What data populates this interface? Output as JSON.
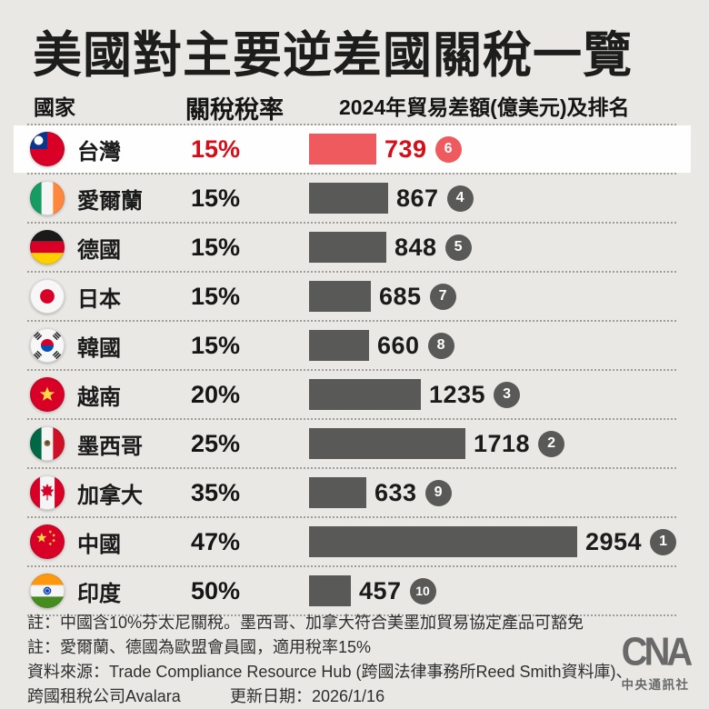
{
  "title": "美國對主要逆差國關稅一覽",
  "table": {
    "col_country": "國家",
    "col_rate": "關稅稅率",
    "col_balance": "2024年貿易差額(億美元)及排名"
  },
  "chart_data": {
    "type": "bar",
    "orientation": "horizontal",
    "title": "美國對主要逆差國關稅一覽",
    "unit": "億美元",
    "max_value": 2954,
    "highlight_index": 0,
    "categories": [
      "台灣",
      "愛爾蘭",
      "德國",
      "日本",
      "韓國",
      "越南",
      "墨西哥",
      "加拿大",
      "中國",
      "印度"
    ],
    "flags": [
      "taiwan",
      "ireland",
      "germany",
      "japan",
      "south-korea",
      "vietnam",
      "mexico",
      "canada",
      "china",
      "india"
    ],
    "series": [
      {
        "name": "關稅稅率",
        "values": [
          "15%",
          "15%",
          "15%",
          "15%",
          "15%",
          "20%",
          "25%",
          "35%",
          "47%",
          "50%"
        ]
      },
      {
        "name": "2024年貿易差額(億美元)",
        "values": [
          739,
          867,
          848,
          685,
          660,
          1235,
          1718,
          633,
          2954,
          457
        ]
      },
      {
        "name": "排名",
        "values": [
          6,
          4,
          5,
          7,
          8,
          3,
          2,
          9,
          1,
          10
        ]
      }
    ]
  },
  "colors": {
    "background": "#e9e8e5",
    "bar": "#595957",
    "bar_highlight": "#ee5a5e",
    "text_highlight": "#d60d18",
    "badge": "#595957",
    "badge_highlight": "#ee5a5e"
  },
  "notes": [
    "註：中國含10%芬太尼關稅。墨西哥、加拿大符合美墨加貿易協定產品可豁免",
    "註：愛爾蘭、德國為歐盟會員國，適用稅率15%"
  ],
  "source": {
    "line1": "資料來源：Trade Compliance Resource Hub (跨國法律事務所Reed Smith資料庫)、",
    "line2": "跨國租稅公司Avalara",
    "updated": "更新日期：2026/1/16"
  },
  "logo": {
    "name": "CNA",
    "subtitle": "中央通訊社"
  }
}
